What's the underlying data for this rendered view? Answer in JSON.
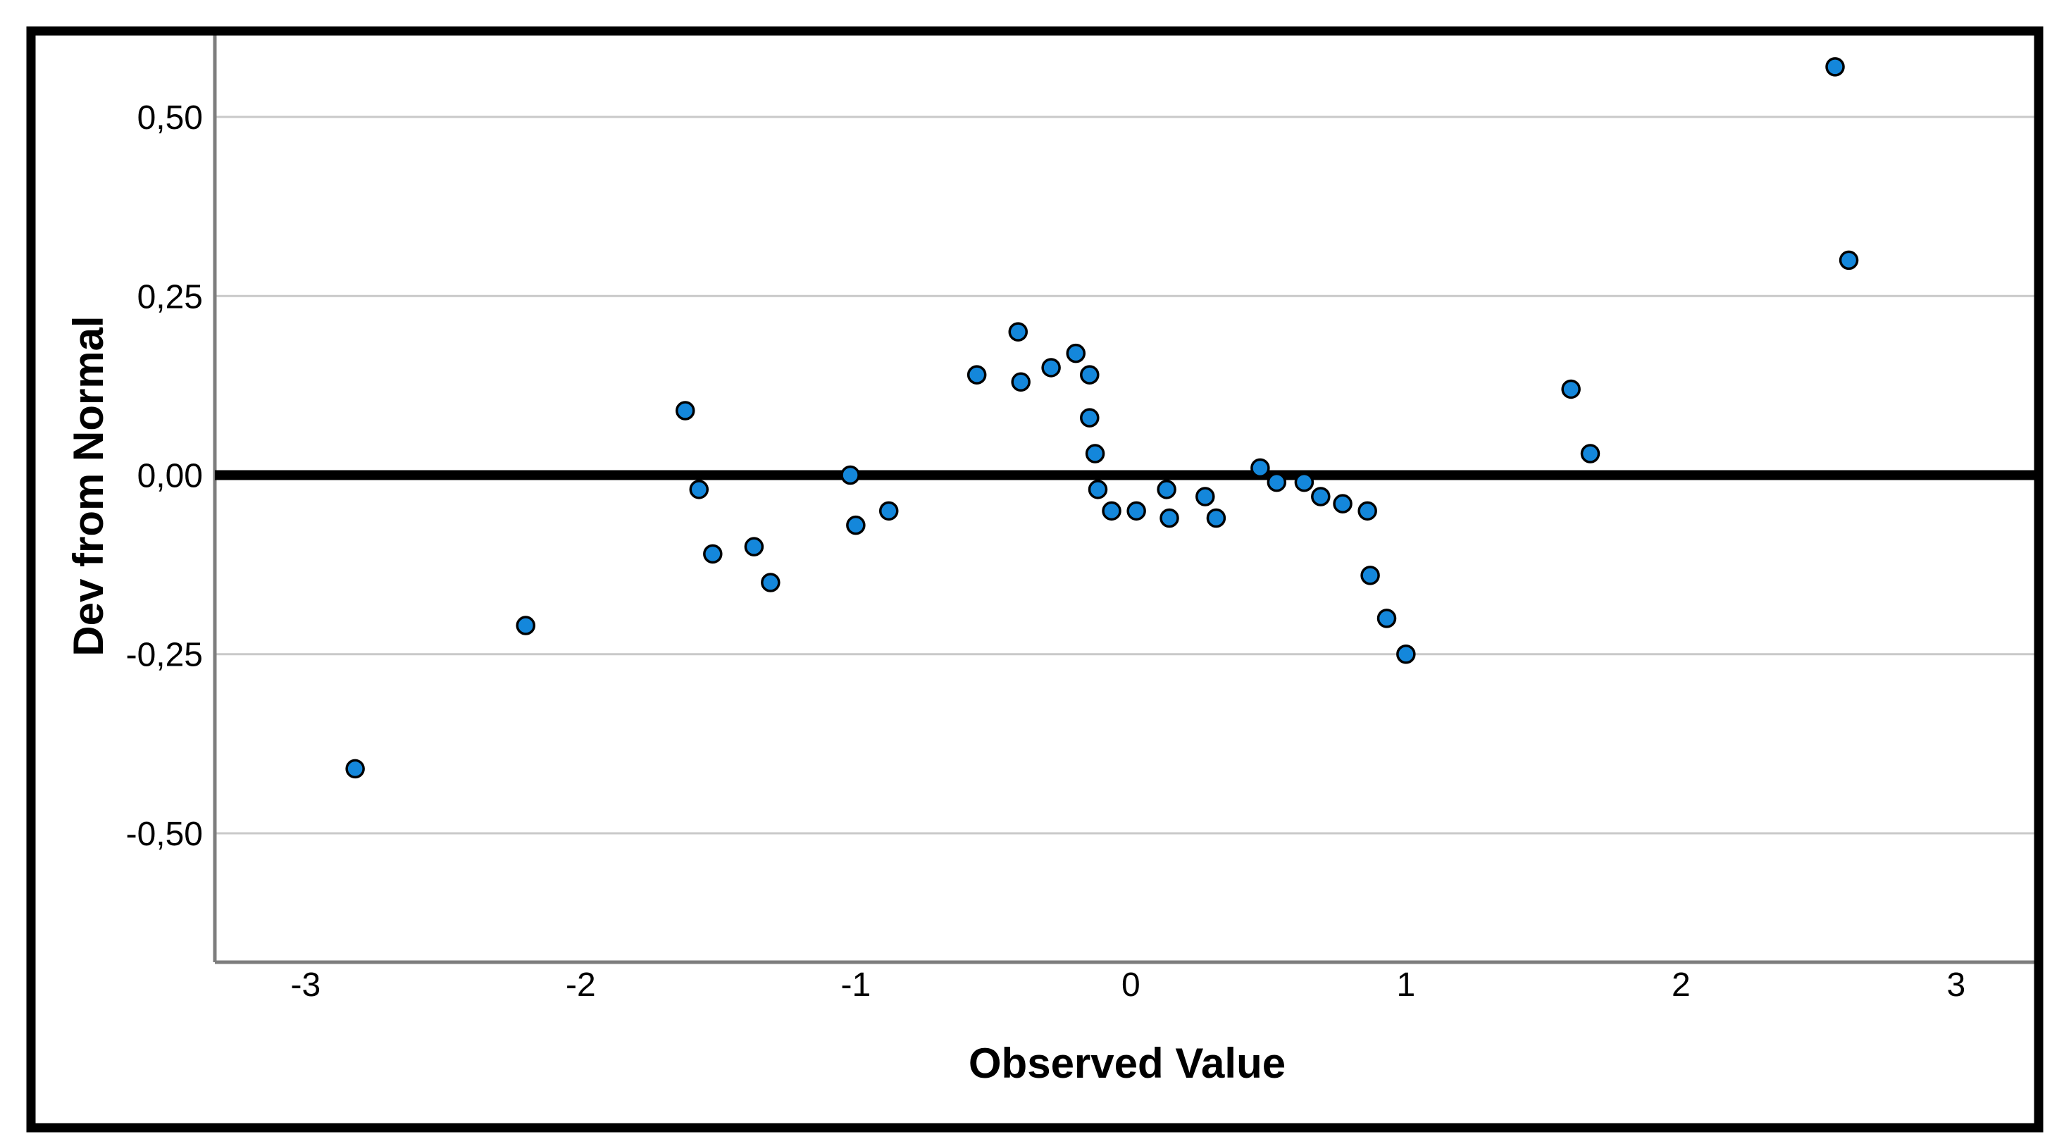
{
  "chart_data": {
    "type": "scatter",
    "title": "",
    "xlabel": "Observed Value",
    "ylabel": "Dev from Normal",
    "x_ticks": [
      {
        "value": -3,
        "label": "-3"
      },
      {
        "value": -2,
        "label": "-2"
      },
      {
        "value": -1,
        "label": "-1"
      },
      {
        "value": 0,
        "label": "0"
      },
      {
        "value": 1,
        "label": "1"
      },
      {
        "value": 2,
        "label": "2"
      },
      {
        "value": 3,
        "label": "3"
      }
    ],
    "y_ticks": [
      {
        "value": 0.5,
        "label": "0,50"
      },
      {
        "value": 0.25,
        "label": "0,25"
      },
      {
        "value": 0.0,
        "label": "0,00"
      },
      {
        "value": -0.25,
        "label": "-0,25"
      },
      {
        "value": -0.5,
        "label": "-0,50"
      }
    ],
    "xlim": [
      -3.33,
      3.3
    ],
    "ylim": [
      -0.68,
      0.62
    ],
    "grid": true,
    "legend": null,
    "decimal_separator": ",",
    "reference_line_y": 0,
    "points": [
      [
        -2.82,
        -0.41
      ],
      [
        -2.2,
        -0.21
      ],
      [
        -1.62,
        0.09
      ],
      [
        -1.57,
        -0.02
      ],
      [
        -1.52,
        -0.11
      ],
      [
        -1.37,
        -0.1
      ],
      [
        -1.31,
        -0.15
      ],
      [
        -1.02,
        0.0
      ],
      [
        -1.0,
        -0.07
      ],
      [
        -0.88,
        -0.05
      ],
      [
        -0.56,
        0.14
      ],
      [
        -0.41,
        0.2
      ],
      [
        -0.4,
        0.13
      ],
      [
        -0.29,
        0.15
      ],
      [
        -0.2,
        0.17
      ],
      [
        -0.15,
        0.14
      ],
      [
        -0.15,
        0.08
      ],
      [
        -0.13,
        0.03
      ],
      [
        -0.12,
        -0.02
      ],
      [
        -0.07,
        -0.05
      ],
      [
        0.02,
        -0.05
      ],
      [
        0.13,
        -0.02
      ],
      [
        0.14,
        -0.06
      ],
      [
        0.27,
        -0.03
      ],
      [
        0.31,
        -0.06
      ],
      [
        0.47,
        0.01
      ],
      [
        0.53,
        -0.01
      ],
      [
        0.63,
        -0.01
      ],
      [
        0.69,
        -0.03
      ],
      [
        0.77,
        -0.04
      ],
      [
        0.86,
        -0.05
      ],
      [
        0.87,
        -0.14
      ],
      [
        0.93,
        -0.2
      ],
      [
        1.0,
        -0.25
      ],
      [
        1.6,
        0.12
      ],
      [
        1.67,
        0.03
      ],
      [
        2.56,
        0.57
      ],
      [
        2.61,
        0.3
      ]
    ],
    "marker": {
      "shape": "circle",
      "fill": "#1487db",
      "stroke": "#000000",
      "radius": 12,
      "stroke_width": 3.5
    },
    "colors": {
      "background": "#ffffff",
      "figure_border": "#000000",
      "gridline": "#c9c9c9",
      "axis_line": "#7d7d7d",
      "reference_line": "#000000",
      "text": "#000000"
    }
  }
}
